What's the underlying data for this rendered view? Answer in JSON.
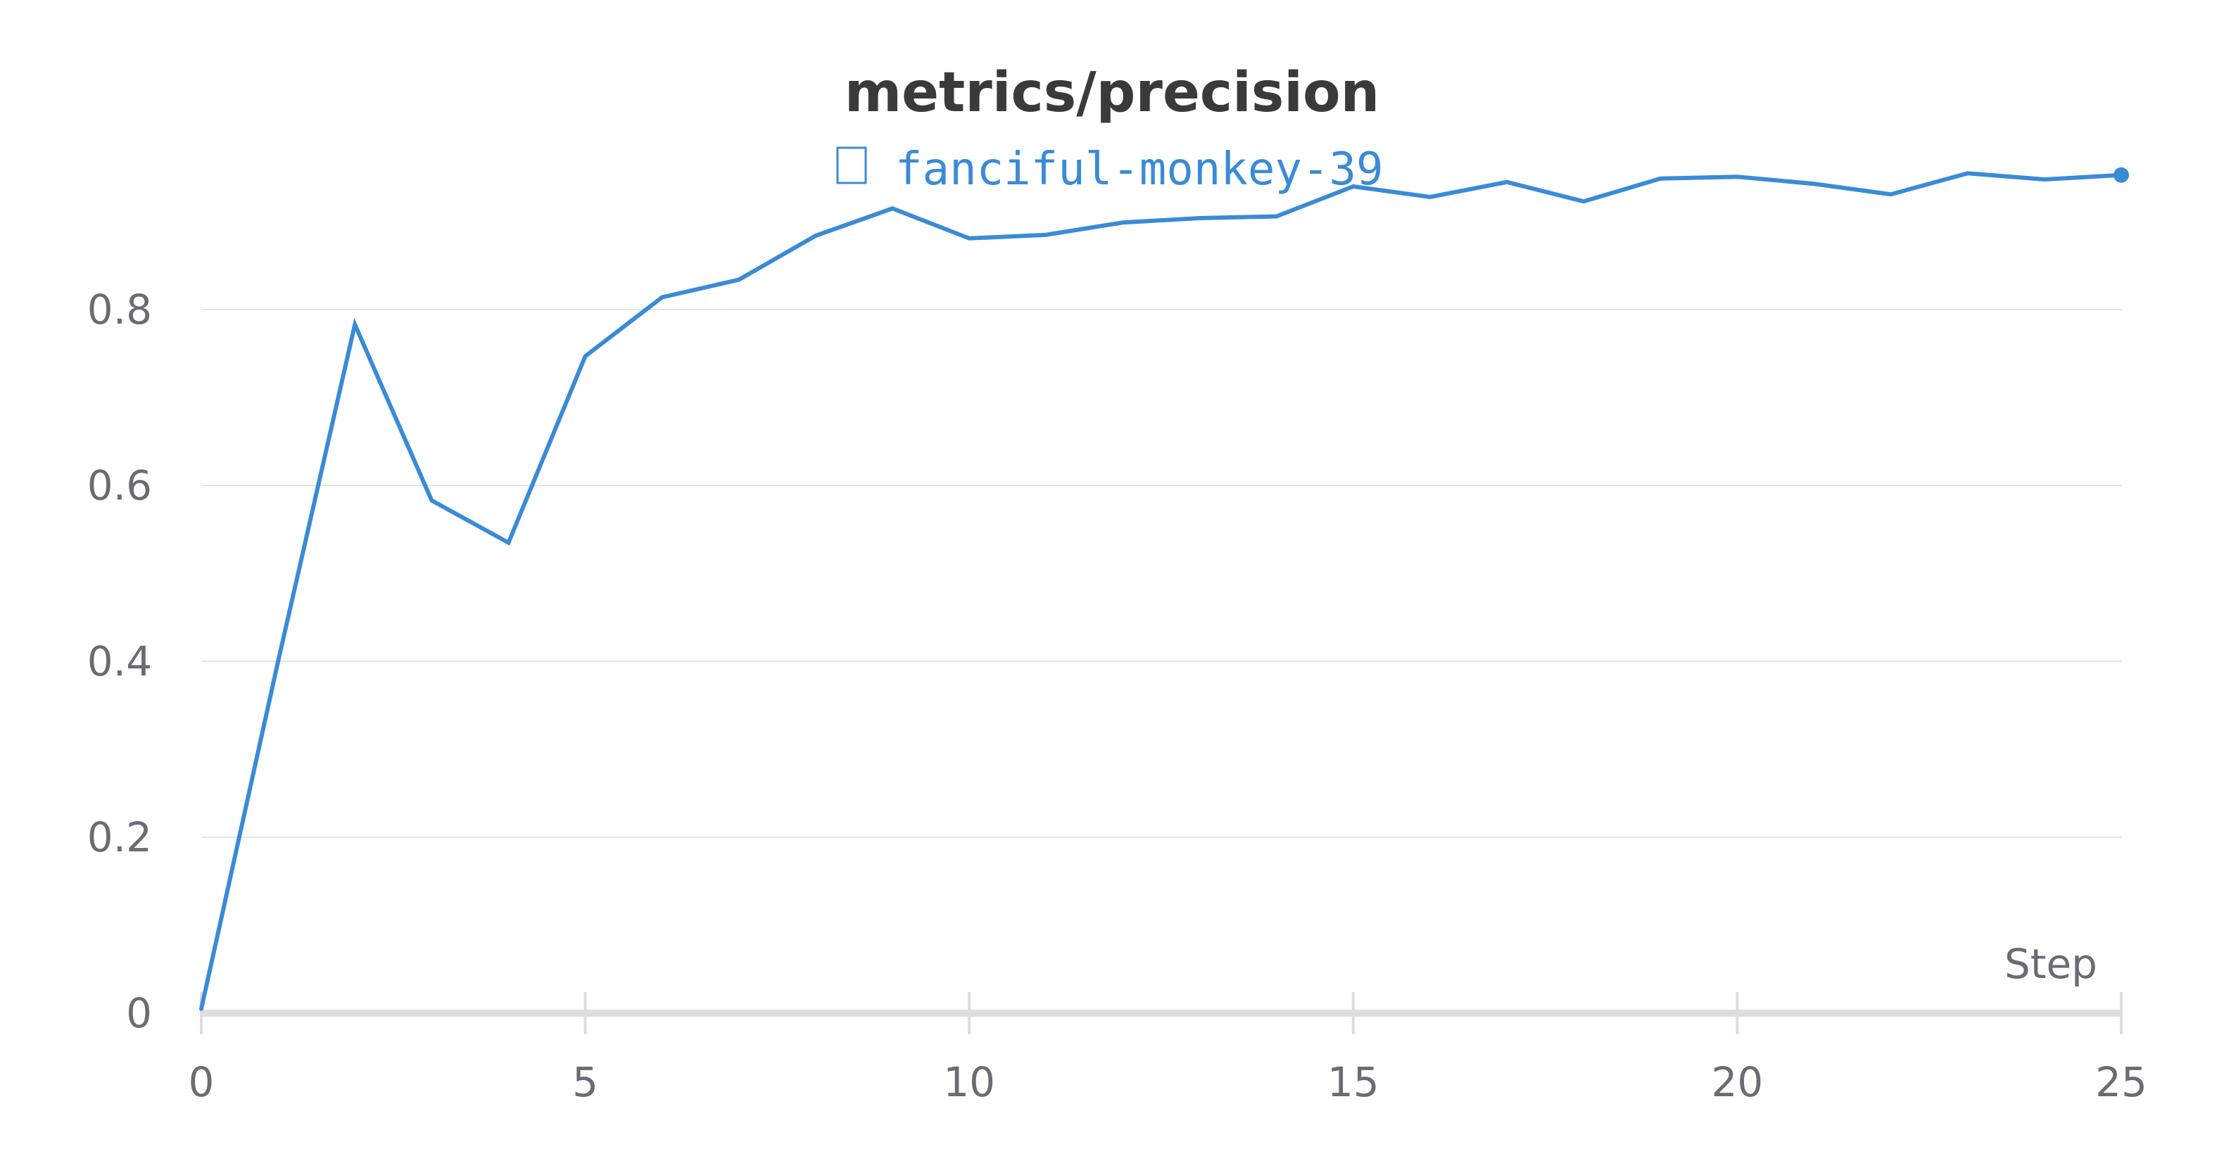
{
  "chart_data": {
    "type": "line",
    "title": "metrics/precision",
    "xlabel": "Step",
    "ylabel": "",
    "xlim": [
      0,
      25
    ],
    "ylim": [
      0,
      1.0
    ],
    "x_ticks": [
      0,
      5,
      10,
      15,
      20,
      25
    ],
    "y_ticks": [
      0,
      0.2,
      0.4,
      0.6,
      0.8
    ],
    "y_tick_labels": [
      "0",
      "0.2",
      "0.4",
      "0.6",
      "0.8"
    ],
    "grid": true,
    "legend_position": "top-center",
    "series": [
      {
        "name": "fanciful-monkey-39",
        "color": "#3a8bd6",
        "x": [
          0,
          1,
          2,
          3,
          4,
          5,
          6,
          7,
          8,
          9,
          10,
          11,
          12,
          13,
          14,
          15,
          16,
          17,
          18,
          19,
          20,
          21,
          22,
          23,
          24,
          25
        ],
        "values": [
          0.005,
          0.4,
          0.783,
          0.583,
          0.535,
          0.747,
          0.814,
          0.834,
          0.884,
          0.915,
          0.881,
          0.885,
          0.899,
          0.904,
          0.906,
          0.94,
          0.928,
          0.945,
          0.923,
          0.949,
          0.951,
          0.943,
          0.931,
          0.955,
          0.948,
          0.953
        ]
      }
    ]
  }
}
